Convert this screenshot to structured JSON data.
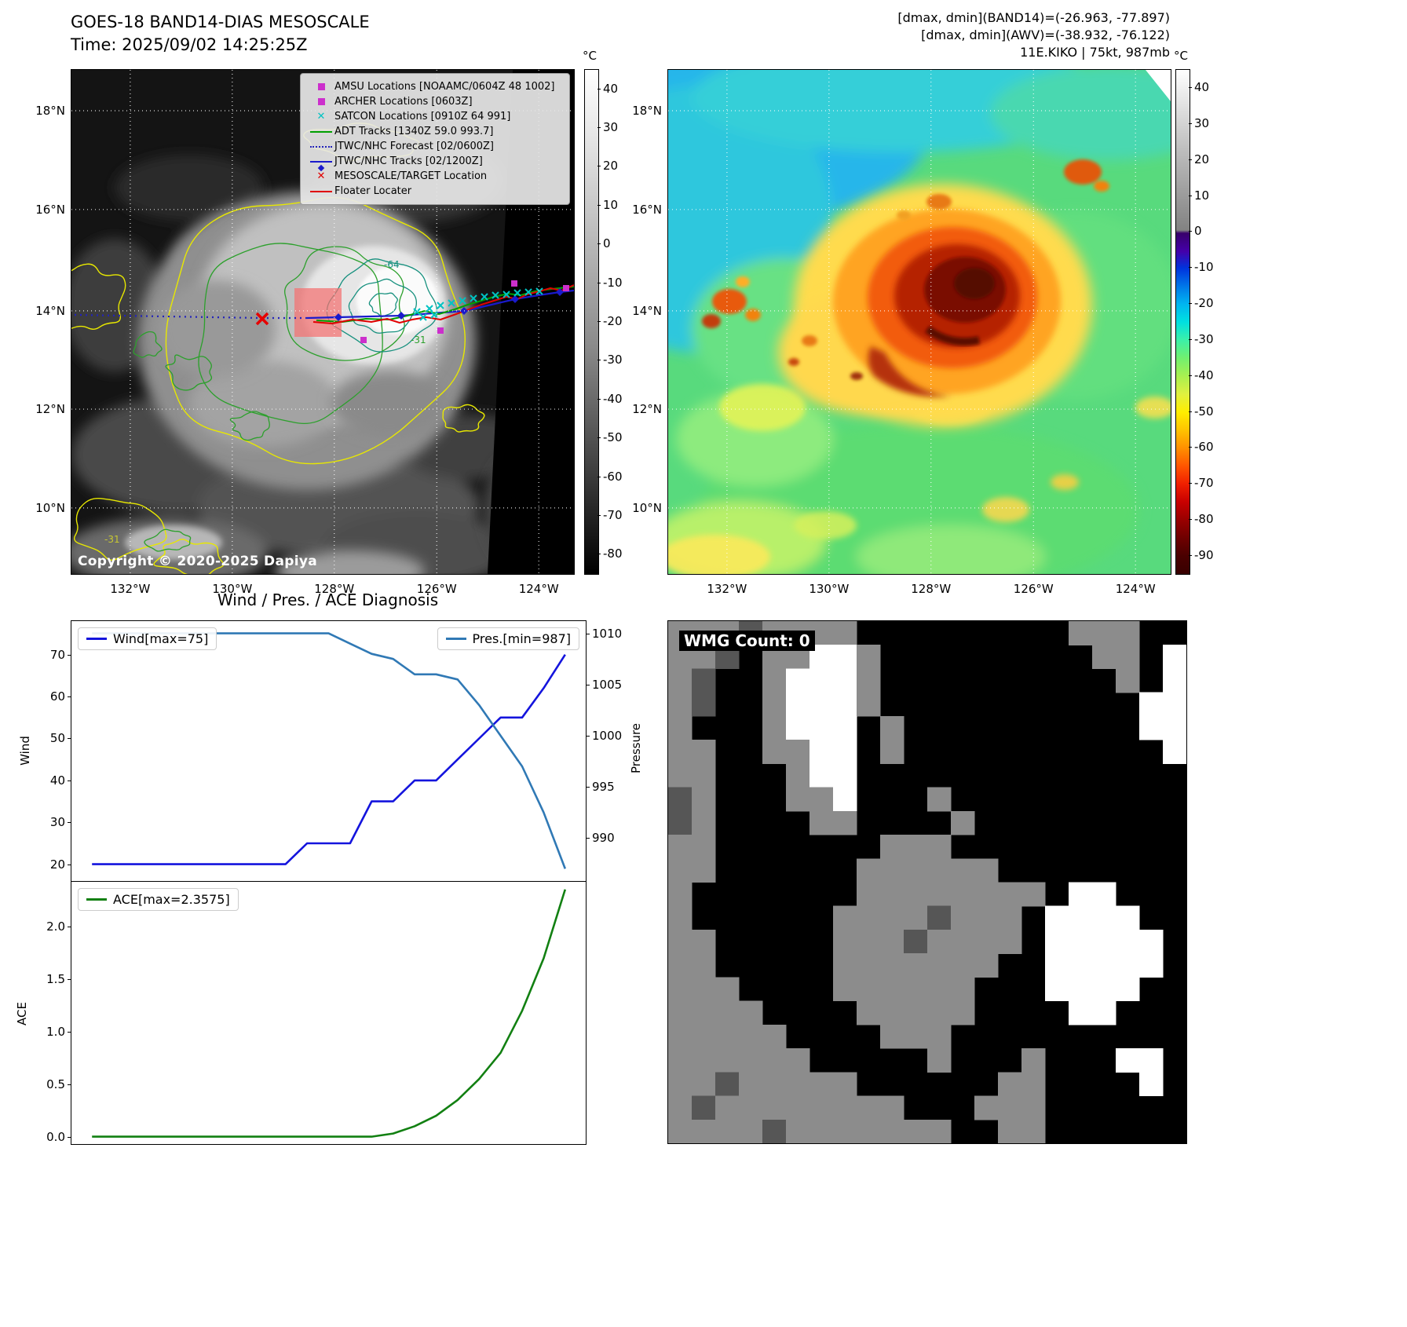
{
  "left_panel": {
    "title_line1": "GOES-18 BAND14-DIAS MESOSCALE",
    "title_line2": "Time: 2025/09/02 14:25:25Z",
    "copyright": "Copyright © 2020-2025 Dapiya",
    "colorbar": {
      "unit": "°C",
      "ticks": [
        "40",
        "30",
        "20",
        "10",
        "0",
        "-10",
        "-20",
        "-30",
        "-40",
        "-50",
        "-60",
        "-70",
        "-80"
      ]
    },
    "lat_labels": [
      "18°N",
      "16°N",
      "14°N",
      "12°N",
      "10°N"
    ],
    "lon_labels": [
      "132°W",
      "130°W",
      "128°W",
      "126°W",
      "124°W"
    ],
    "contour_labels": [
      "-64",
      "-31",
      "-31"
    ],
    "legend": {
      "items": [
        {
          "marker": "square",
          "color": "#cc2fcc",
          "label": "AMSU Locations [NOAAMC/0604Z 48 1002]"
        },
        {
          "marker": "square",
          "color": "#cc2fcc",
          "label": "ARCHER Locations [0603Z]"
        },
        {
          "marker": "x",
          "color": "#00c3c3",
          "label": "SATCON Locations [0910Z 64 991]"
        },
        {
          "marker": "line",
          "color": "#00a000",
          "label": "ADT Tracks [1340Z 59.0 993.7]"
        },
        {
          "marker": "dotted",
          "color": "#2222bb",
          "label": "JTWC/NHC Forecast [02/0600Z]"
        },
        {
          "marker": "line-marker",
          "color": "#1a1acc",
          "label": "JTWC/NHC Tracks [02/1200Z]"
        },
        {
          "marker": "x",
          "color": "#e00000",
          "label": "MESOSCALE/TARGET Location"
        },
        {
          "marker": "line",
          "color": "#e00000",
          "label": "Floater Locater"
        }
      ]
    }
  },
  "right_panel": {
    "header_line1": "[dmax, dmin](BAND14)=(-26.963, -77.897)",
    "header_line2": "[dmax, dmin](AWV)=(-38.932, -76.122)",
    "header_line3": "11E.KIKO | 75kt, 987mb",
    "colorbar": {
      "unit": "°C",
      "ticks": [
        "40",
        "30",
        "20",
        "10",
        "0",
        "-10",
        "-20",
        "-30",
        "-40",
        "-50",
        "-60",
        "-70",
        "-80",
        "-90"
      ]
    },
    "lat_labels": [
      "18°N",
      "16°N",
      "14°N",
      "12°N",
      "10°N"
    ],
    "lon_labels": [
      "132°W",
      "130°W",
      "128°W",
      "126°W",
      "124°W"
    ]
  },
  "chart_data": {
    "type": "line",
    "title": "Wind / Pres. / ACE Diagnosis",
    "x_tick_labels": [],
    "n_points": 23,
    "grid": false,
    "series": [
      {
        "name": "Wind[max=75]",
        "axis": "left",
        "panel": "top",
        "axis_label": "Wind",
        "color": "#1414dd",
        "ylim": [
          16,
          78
        ],
        "ticks": [
          "20",
          "30",
          "40",
          "50",
          "60",
          "70"
        ],
        "values": [
          20,
          20,
          20,
          20,
          20,
          20,
          20,
          20,
          20,
          20,
          25,
          25,
          25,
          35,
          35,
          40,
          40,
          45,
          50,
          55,
          55,
          62,
          70
        ]
      },
      {
        "name": "Pres.[min=987]",
        "axis": "right",
        "panel": "top",
        "axis_label": "Pressure",
        "color": "#3079b5",
        "ylim": [
          985.8,
          1011.2
        ],
        "ticks": [
          "990",
          "995",
          "1000",
          "1005",
          "1010"
        ],
        "values": [
          1010,
          1010,
          1010,
          1010,
          1010,
          1010,
          1010,
          1010,
          1010,
          1010,
          1010,
          1010,
          1009,
          1008,
          1007.5,
          1006,
          1006,
          1005.5,
          1003,
          1000,
          997,
          992.5,
          987
        ]
      },
      {
        "name": "ACE[max=2.3575]",
        "axis": "left",
        "panel": "bottom",
        "axis_label": "ACE",
        "color": "#128012",
        "ylim": [
          -0.07,
          2.43
        ],
        "ticks": [
          "0.0",
          "0.5",
          "1.0",
          "1.5",
          "2.0"
        ],
        "values": [
          0,
          0,
          0,
          0,
          0,
          0,
          0,
          0,
          0,
          0,
          0,
          0,
          0,
          0,
          0.03,
          0.1,
          0.2,
          0.35,
          0.55,
          0.8,
          1.2,
          1.7,
          2.3575
        ]
      }
    ],
    "legend_position": "upper-left / upper-right"
  },
  "wmg_panel": {
    "label": "WMG Count: 0",
    "palette": {
      ".": "#000000",
      "g": "#8c8c8c",
      "d": "#565656",
      "w": "#ffffff"
    },
    "grid": [
      "gggdgggg.........ggg..",
      "ggd.ggwwg.........gg.w",
      "gd..gwwwg..........g.w",
      "gd..gwwwg...........ww",
      "g...gwww.g..........ww",
      "gg..ggww.g...........w",
      "gg...gww..............",
      "dg...ggw...g..........",
      "dg....gg....g.........",
      "gg.......ggg..........",
      "gg......gggggg........",
      "g.......gggggggg.ww...",
      "g......ggggdggg.wwww..",
      "gg.....gggdgggg.wwwww.",
      "gg.....ggggggg..wwwww.",
      "ggg....gggggg...wwww..",
      "gggg....ggggg....ww...",
      "ggggg....ggg..........",
      "gggggg.....g...g...ww.",
      "ggdggggg......gg....w.",
      "gdgggggggg...ggg......",
      "ggggdggggggg..gg......"
    ]
  }
}
